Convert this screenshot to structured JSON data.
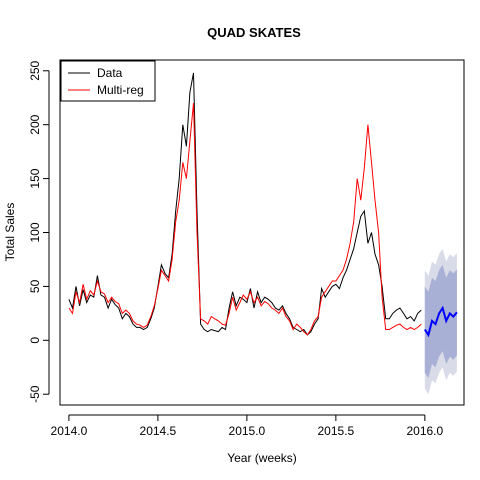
{
  "chart_data": {
    "type": "line",
    "title": "QUAD SKATES",
    "xlabel": "Year (weeks)",
    "ylabel": "Total Sales",
    "xlim": [
      2013.95,
      2016.22
    ],
    "ylim": [
      -60,
      260
    ],
    "x_ticks": [
      2014.0,
      2014.5,
      2015.0,
      2015.5,
      2016.0
    ],
    "x_tick_labels": [
      "2014.0",
      "2014.5",
      "2015.0",
      "2015.5",
      "2016.0"
    ],
    "y_ticks": [
      -50,
      0,
      50,
      100,
      150,
      200,
      250
    ],
    "y_tick_labels": [
      "-50",
      "0",
      "50",
      "100",
      "150",
      "200",
      "250"
    ],
    "legend": {
      "position": "top-left",
      "entries": [
        "Data",
        "Multi-reg"
      ]
    },
    "colors": {
      "data": "#000000",
      "model": "#ff0000",
      "forecast": "#0000ff",
      "band80": "#a9b0d6",
      "band95": "#d9dbe8"
    },
    "grid": false,
    "series": [
      {
        "name": "Data",
        "x": [
          2014.0,
          2014.02,
          2014.04,
          2014.06,
          2014.08,
          2014.1,
          2014.12,
          2014.14,
          2014.16,
          2014.18,
          2014.2,
          2014.22,
          2014.24,
          2014.26,
          2014.28,
          2014.3,
          2014.32,
          2014.34,
          2014.36,
          2014.38,
          2014.4,
          2014.42,
          2014.44,
          2014.46,
          2014.48,
          2014.5,
          2014.52,
          2014.54,
          2014.56,
          2014.58,
          2014.6,
          2014.62,
          2014.64,
          2014.66,
          2014.68,
          2014.7,
          2014.72,
          2014.74,
          2014.76,
          2014.78,
          2014.8,
          2014.82,
          2014.84,
          2014.86,
          2014.88,
          2014.9,
          2014.92,
          2014.94,
          2014.96,
          2014.98,
          2015.0,
          2015.02,
          2015.04,
          2015.06,
          2015.08,
          2015.1,
          2015.12,
          2015.14,
          2015.16,
          2015.18,
          2015.2,
          2015.22,
          2015.24,
          2015.26,
          2015.28,
          2015.3,
          2015.32,
          2015.34,
          2015.36,
          2015.38,
          2015.4,
          2015.42,
          2015.44,
          2015.46,
          2015.48,
          2015.5,
          2015.52,
          2015.54,
          2015.56,
          2015.58,
          2015.6,
          2015.62,
          2015.64,
          2015.66,
          2015.68,
          2015.7,
          2015.72,
          2015.74,
          2015.76,
          2015.78,
          2015.8,
          2015.82,
          2015.84,
          2015.86,
          2015.88,
          2015.9,
          2015.92,
          2015.94,
          2015.96,
          2015.98
        ],
        "values": [
          38,
          30,
          50,
          32,
          47,
          35,
          42,
          40,
          60,
          42,
          40,
          30,
          38,
          33,
          30,
          20,
          25,
          22,
          15,
          12,
          12,
          10,
          12,
          20,
          30,
          50,
          70,
          62,
          58,
          80,
          120,
          150,
          200,
          180,
          230,
          248,
          120,
          15,
          10,
          8,
          10,
          9,
          8,
          12,
          10,
          30,
          45,
          32,
          40,
          38,
          35,
          48,
          30,
          45,
          35,
          40,
          38,
          35,
          30,
          28,
          32,
          25,
          20,
          12,
          10,
          8,
          10,
          5,
          8,
          15,
          20,
          48,
          40,
          45,
          50,
          52,
          48,
          58,
          65,
          75,
          85,
          100,
          115,
          120,
          90,
          100,
          80,
          70,
          50,
          20,
          20,
          25,
          28,
          30,
          25,
          20,
          22,
          18,
          25,
          28
        ]
      },
      {
        "name": "Multi-reg",
        "x": [
          2014.0,
          2014.02,
          2014.04,
          2014.06,
          2014.08,
          2014.1,
          2014.12,
          2014.14,
          2014.16,
          2014.18,
          2014.2,
          2014.22,
          2014.24,
          2014.26,
          2014.28,
          2014.3,
          2014.32,
          2014.34,
          2014.36,
          2014.38,
          2014.4,
          2014.42,
          2014.44,
          2014.46,
          2014.48,
          2014.5,
          2014.52,
          2014.54,
          2014.56,
          2014.58,
          2014.6,
          2014.62,
          2014.64,
          2014.66,
          2014.68,
          2014.7,
          2014.72,
          2014.74,
          2014.76,
          2014.78,
          2014.8,
          2014.82,
          2014.84,
          2014.86,
          2014.88,
          2014.9,
          2014.92,
          2014.94,
          2014.96,
          2014.98,
          2015.0,
          2015.02,
          2015.04,
          2015.06,
          2015.08,
          2015.1,
          2015.12,
          2015.14,
          2015.16,
          2015.18,
          2015.2,
          2015.22,
          2015.24,
          2015.26,
          2015.28,
          2015.3,
          2015.32,
          2015.34,
          2015.36,
          2015.38,
          2015.4,
          2015.42,
          2015.44,
          2015.46,
          2015.48,
          2015.5,
          2015.52,
          2015.54,
          2015.56,
          2015.58,
          2015.6,
          2015.62,
          2015.64,
          2015.66,
          2015.68,
          2015.7,
          2015.72,
          2015.74,
          2015.76,
          2015.78,
          2015.8,
          2015.82,
          2015.84,
          2015.86,
          2015.88,
          2015.9,
          2015.92,
          2015.94,
          2015.96,
          2015.98
        ],
        "values": [
          30,
          25,
          45,
          35,
          52,
          38,
          46,
          42,
          55,
          45,
          43,
          35,
          40,
          36,
          34,
          25,
          28,
          25,
          18,
          15,
          14,
          12,
          14,
          22,
          32,
          48,
          65,
          60,
          55,
          75,
          110,
          130,
          165,
          150,
          185,
          220,
          100,
          20,
          18,
          15,
          22,
          20,
          18,
          15,
          14,
          25,
          40,
          28,
          35,
          42,
          38,
          45,
          35,
          40,
          32,
          36,
          34,
          30,
          28,
          25,
          30,
          22,
          18,
          10,
          15,
          12,
          8,
          5,
          10,
          18,
          22,
          40,
          45,
          50,
          55,
          55,
          60,
          65,
          75,
          90,
          110,
          150,
          130,
          160,
          200,
          165,
          130,
          100,
          40,
          10,
          10,
          12,
          14,
          15,
          12,
          10,
          12,
          10,
          12,
          15
        ]
      },
      {
        "name": "Forecast",
        "x": [
          2016.0,
          2016.02,
          2016.04,
          2016.06,
          2016.08,
          2016.1,
          2016.12,
          2016.14,
          2016.16,
          2016.18
        ],
        "values": [
          10,
          5,
          18,
          15,
          25,
          30,
          18,
          25,
          22,
          26
        ],
        "lower80": [
          -30,
          -35,
          -22,
          -25,
          -15,
          -10,
          -22,
          -15,
          -18,
          -14
        ],
        "upper80": [
          50,
          45,
          58,
          55,
          65,
          70,
          58,
          65,
          62,
          66
        ],
        "lower95": [
          -45,
          -50,
          -37,
          -40,
          -30,
          -25,
          -37,
          -30,
          -33,
          -29
        ],
        "upper95": [
          65,
          60,
          73,
          70,
          80,
          85,
          73,
          80,
          77,
          81
        ]
      }
    ]
  }
}
